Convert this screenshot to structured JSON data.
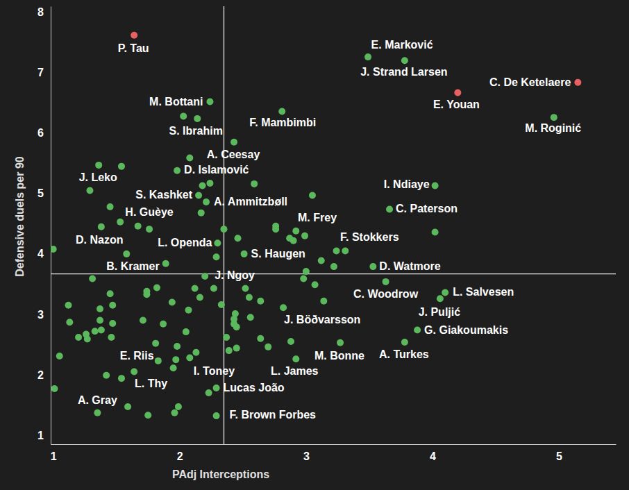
{
  "chart_data": {
    "type": "scatter",
    "x_label": "PAdj Interceptions",
    "y_label": "Defensive duels per 90",
    "xlim": [
      0.98,
      5.45
    ],
    "ylim": [
      0.85,
      8.1
    ],
    "xticks": [
      1,
      2,
      3,
      4,
      5
    ],
    "yticks": [
      1,
      2,
      3,
      4,
      5,
      6,
      7,
      8
    ],
    "grid": false,
    "reference_lines": [
      {
        "axis": "x",
        "value": 2.35
      },
      {
        "axis": "y",
        "value": 3.67
      }
    ],
    "x": [
      1.64,
      3.49,
      3.78,
      5.15,
      4.2,
      4.96,
      2.24,
      2.14,
      2.81,
      2.43,
      1.98,
      1.36,
      4.02,
      2.15,
      2.21,
      2.17,
      3.66,
      2.99,
      1.58,
      2.3,
      2.51,
      3.31,
      1.89,
      3.53,
      2.2,
      3.63,
      4.1,
      4.06,
      3.88,
      2.82,
      3.78,
      3.27,
      1.64,
      2.13,
      2.92,
      2.29,
      1.54,
      1.35,
      2.29,
      2.03,
      2.08,
      1.54,
      1.29,
      2.24,
      2.18,
      2.59,
      3.05,
      1.45,
      1.53,
      1.38,
      1.67,
      1.76,
      2.35,
      2.46,
      2.76,
      2.76,
      2.92,
      2.87,
      2.9,
      3.24,
      3.12,
      3.22,
      3.0,
      4.02,
      1.0,
      2.29,
      1.31,
      1.45,
      1.47,
      1.74,
      1.82,
      1.74,
      2.12,
      2.27,
      2.16,
      2.33,
      2.52,
      2.55,
      2.64,
      3.14,
      3.07,
      2.98,
      1.12,
      1.37,
      1.13,
      1.37,
      1.47,
      1.94,
      2.07,
      1.87,
      2.05,
      2.44,
      2.56,
      2.43,
      2.43,
      2.45,
      1.2,
      1.26,
      1.27,
      1.33,
      1.38,
      1.46,
      1.71,
      2.37,
      2.64,
      2.7,
      2.88,
      2.45,
      2.39,
      1.81,
      1.98,
      1.05,
      1.83,
      1.95,
      1.97,
      2.08,
      1.42,
      1.59,
      1.75,
      1.96,
      1.99,
      1.01,
      2.23
    ],
    "values": [
      7.62,
      7.26,
      7.2,
      6.84,
      6.67,
      6.26,
      6.52,
      6.24,
      6.36,
      5.85,
      5.38,
      5.47,
      5.13,
      4.97,
      4.86,
      4.68,
      4.74,
      4.3,
      4.0,
      4.18,
      4.0,
      4.05,
      3.84,
      3.79,
      3.63,
      3.54,
      3.36,
      3.26,
      2.74,
      3.11,
      2.54,
      2.53,
      2.05,
      2.37,
      2.26,
      1.78,
      1.94,
      1.37,
      1.32,
      6.28,
      5.59,
      5.45,
      5.05,
      5.17,
      5.13,
      5.16,
      4.97,
      4.78,
      4.53,
      4.45,
      4.46,
      4.41,
      4.41,
      4.26,
      4.46,
      4.41,
      4.38,
      4.26,
      4.22,
      4.05,
      3.89,
      3.79,
      3.71,
      4.36,
      4.08,
      3.95,
      3.59,
      3.34,
      3.15,
      3.38,
      3.44,
      3.33,
      3.43,
      3.43,
      3.28,
      3.16,
      3.43,
      3.28,
      3.22,
      3.22,
      3.49,
      3.59,
      3.15,
      3.09,
      2.87,
      2.9,
      2.85,
      3.2,
      3.07,
      2.84,
      2.71,
      3.01,
      2.95,
      2.92,
      2.84,
      2.79,
      2.62,
      2.67,
      2.59,
      2.72,
      2.74,
      2.62,
      2.9,
      2.62,
      2.6,
      2.46,
      2.55,
      2.44,
      2.4,
      2.52,
      2.47,
      2.31,
      2.23,
      2.11,
      2.25,
      2.28,
      1.99,
      1.47,
      1.33,
      1.37,
      1.47,
      1.77,
      1.7
    ],
    "labels": [
      "P. Tau",
      "E. Marković",
      "J. Strand Larsen",
      "C. De Ketelaere",
      "E. Youan",
      "M. Roginić",
      "M. Bottani",
      "S. Ibrahim",
      "F. Mambimbi",
      "A. Ceesay",
      "D. Islamović",
      "J. Leko",
      "I. Ndiaye",
      "S. Kashket",
      "A. Ammitzbøll",
      "H. Guèye",
      "C. Paterson",
      "M. Frey",
      "D. Nazon",
      "L. Openda",
      "S. Haugen",
      "F. Stokkers",
      "B. Kramer",
      "D. Watmore",
      "J. Ngoy",
      "C. Woodrow",
      "L. Salvesen",
      "J. Puljić",
      "G. Giakoumakis",
      "J. Böðvarsson",
      "A. Turkes",
      "M. Bonne",
      "E. Riis",
      "I. Toney",
      "L. James",
      "Lucas João",
      "L. Thy",
      "A. Gray",
      "F. Brown Forbes",
      null,
      null,
      null,
      null,
      null,
      null,
      null,
      null,
      null,
      null,
      null,
      null,
      null,
      null,
      null,
      null,
      null,
      null,
      null,
      null,
      null,
      null,
      null,
      null,
      null,
      null,
      null,
      null,
      null,
      null,
      null,
      null,
      null,
      null,
      null,
      null,
      null,
      null,
      null,
      null,
      null,
      null,
      null,
      null,
      null,
      null,
      null,
      null,
      null,
      null,
      null,
      null,
      null,
      null,
      null,
      null,
      null,
      null,
      null,
      null,
      null,
      null,
      null,
      null,
      null,
      null,
      null,
      null,
      null,
      null,
      null,
      null,
      null,
      null,
      null,
      null,
      null,
      null,
      null,
      null,
      null,
      null,
      null,
      null
    ],
    "colors": [
      "#e8605f",
      "#5cb85c",
      "#5cb85c",
      "#e8605f",
      "#e8605f",
      "#5cb85c",
      "#5cb85c",
      "#5cb85c",
      "#5cb85c",
      "#5cb85c",
      "#5cb85c",
      "#5cb85c",
      "#5cb85c",
      "#5cb85c",
      "#5cb85c",
      "#5cb85c",
      "#5cb85c",
      "#5cb85c",
      "#5cb85c",
      "#5cb85c",
      "#5cb85c",
      "#5cb85c",
      "#5cb85c",
      "#5cb85c",
      "#5cb85c",
      "#5cb85c",
      "#5cb85c",
      "#5cb85c",
      "#5cb85c",
      "#5cb85c",
      "#5cb85c",
      "#5cb85c",
      "#5cb85c",
      "#5cb85c",
      "#5cb85c",
      "#5cb85c",
      "#5cb85c",
      "#5cb85c",
      "#5cb85c",
      "#5cb85c",
      "#5cb85c",
      "#5cb85c",
      "#5cb85c",
      "#5cb85c",
      "#5cb85c",
      "#5cb85c",
      "#5cb85c",
      "#5cb85c",
      "#5cb85c",
      "#5cb85c",
      "#5cb85c",
      "#5cb85c",
      "#5cb85c",
      "#5cb85c",
      "#5cb85c",
      "#5cb85c",
      "#5cb85c",
      "#5cb85c",
      "#5cb85c",
      "#5cb85c",
      "#5cb85c",
      "#5cb85c",
      "#5cb85c",
      "#5cb85c",
      "#5cb85c",
      "#5cb85c",
      "#5cb85c",
      "#5cb85c",
      "#5cb85c",
      "#5cb85c",
      "#5cb85c",
      "#5cb85c",
      "#5cb85c",
      "#5cb85c",
      "#5cb85c",
      "#5cb85c",
      "#5cb85c",
      "#5cb85c",
      "#5cb85c",
      "#5cb85c",
      "#5cb85c",
      "#5cb85c",
      "#5cb85c",
      "#5cb85c",
      "#5cb85c",
      "#5cb85c",
      "#5cb85c",
      "#5cb85c",
      "#5cb85c",
      "#5cb85c",
      "#5cb85c",
      "#5cb85c",
      "#5cb85c",
      "#5cb85c",
      "#5cb85c",
      "#5cb85c",
      "#5cb85c",
      "#5cb85c",
      "#5cb85c",
      "#5cb85c",
      "#5cb85c",
      "#5cb85c",
      "#5cb85c",
      "#5cb85c",
      "#5cb85c",
      "#5cb85c",
      "#5cb85c",
      "#5cb85c",
      "#5cb85c",
      "#5cb85c",
      "#5cb85c",
      "#5cb85c",
      "#5cb85c",
      "#5cb85c",
      "#5cb85c",
      "#5cb85c",
      "#5cb85c",
      "#5cb85c",
      "#5cb85c",
      "#5cb85c",
      "#5cb85c",
      "#5cb85c",
      "#5cb85c"
    ]
  }
}
